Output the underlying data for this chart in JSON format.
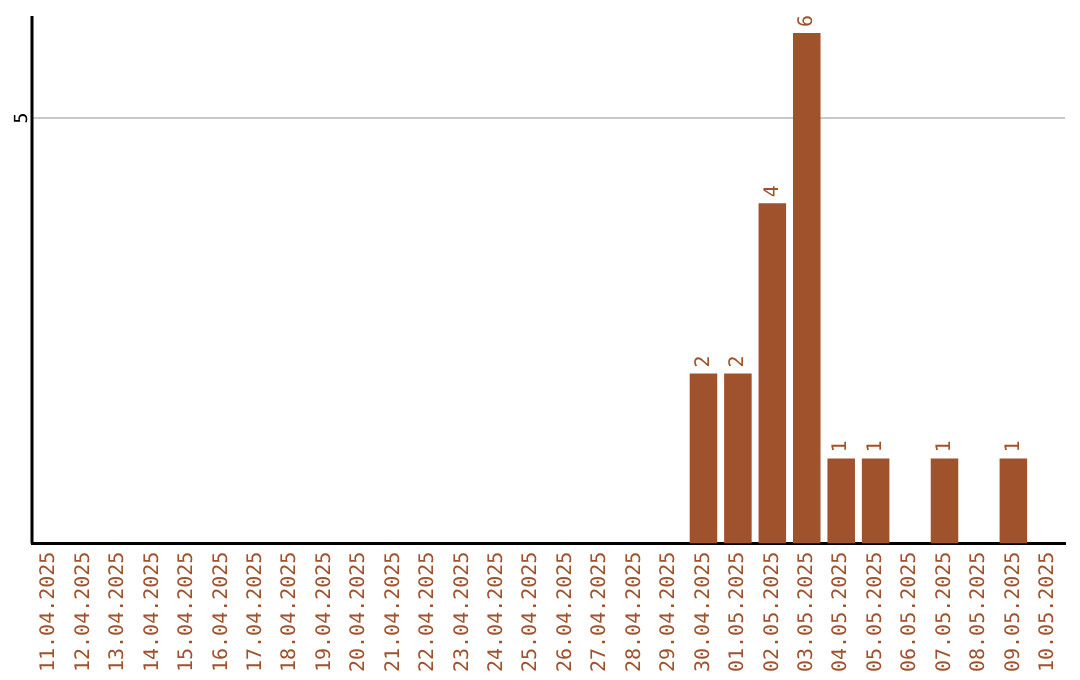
{
  "chart_data": {
    "type": "bar",
    "categories": [
      "11.04.2025",
      "12.04.2025",
      "13.04.2025",
      "14.04.2025",
      "15.04.2025",
      "16.04.2025",
      "17.04.2025",
      "18.04.2025",
      "19.04.2025",
      "20.04.2025",
      "21.04.2025",
      "22.04.2025",
      "23.04.2025",
      "24.04.2025",
      "25.04.2025",
      "26.04.2025",
      "27.04.2025",
      "28.04.2025",
      "29.04.2025",
      "30.04.2025",
      "01.05.2025",
      "02.05.2025",
      "03.05.2025",
      "04.05.2025",
      "05.05.2025",
      "06.05.2025",
      "07.05.2025",
      "08.05.2025",
      "09.05.2025",
      "10.05.2025"
    ],
    "values": [
      null,
      null,
      null,
      null,
      null,
      null,
      null,
      null,
      null,
      null,
      null,
      null,
      null,
      null,
      null,
      null,
      null,
      null,
      null,
      2,
      2,
      4,
      6,
      1,
      1,
      null,
      1,
      null,
      1,
      null
    ],
    "data_labels": true,
    "ylim": [
      0,
      6.2
    ],
    "color": "#a0522d",
    "ref_lines": [
      {
        "axis": "y",
        "value": 5,
        "label": "5",
        "color": "#c8c8c8"
      }
    ],
    "legend": false
  }
}
